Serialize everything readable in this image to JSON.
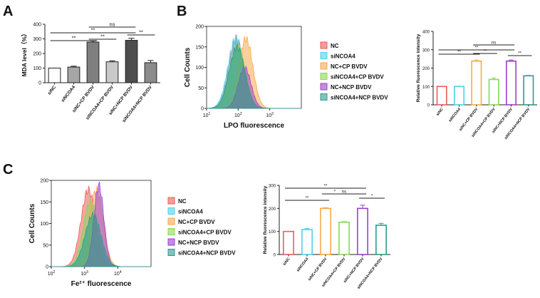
{
  "panel_labels": {
    "a": "A",
    "b": "B",
    "c": "C"
  },
  "chart_data": [
    {
      "id": "A",
      "type": "bar",
      "ylabel": "MDA level（%）",
      "ylim": [
        0,
        400
      ],
      "yticks": [
        0,
        100,
        200,
        300,
        400
      ],
      "categories": [
        "siNC",
        "siNCOA4",
        "siNC+CP BVDV",
        "siNCOA4+CP BVDV",
        "siNC+NCP BVDV",
        "siNCOA4+NCP BVDV"
      ],
      "values": [
        100,
        107,
        278,
        143,
        290,
        137
      ],
      "errors": [
        0,
        6,
        8,
        7,
        14,
        15
      ],
      "fills": [
        "#ffffff",
        "#a6a6a6",
        "#7f7f7f",
        "#c9c9c9",
        "#4d4d4d",
        "#8c8c8c"
      ],
      "significance": [
        {
          "from": 0,
          "to": 2,
          "label": "**"
        },
        {
          "from": 2,
          "to": 3,
          "label": "**"
        },
        {
          "from": 0,
          "to": 4,
          "label": "**"
        },
        {
          "from": 2,
          "to": 4,
          "label": "ns"
        },
        {
          "from": 4,
          "to": 5,
          "label": "**"
        }
      ]
    },
    {
      "id": "B-hist",
      "type": "area",
      "xlabel": "LPO fluorescence",
      "ylabel": "Cell Counts",
      "ylim": [
        0,
        200
      ],
      "yticks": [
        0,
        50,
        100,
        150,
        200
      ],
      "xscale": "log",
      "xlim": [
        10,
        10000
      ],
      "xtick_labels": [
        "10^1",
        "10^2",
        "10^3"
      ],
      "series": [
        {
          "name": "NC",
          "color": "#f05a5a",
          "peak": 88,
          "width": 0.24,
          "height": 168
        },
        {
          "name": "siNCOA4",
          "color": "#4fd0e8",
          "peak": 85,
          "width": 0.25,
          "height": 172
        },
        {
          "name": "NC+CP BVDV",
          "color": "#f7a94b",
          "peak": 175,
          "width": 0.22,
          "height": 170
        },
        {
          "name": "siNCOA4+CP BVDV",
          "color": "#8ed659",
          "peak": 95,
          "width": 0.24,
          "height": 150
        },
        {
          "name": "NC+NCP BVDV",
          "color": "#9b3fd1",
          "peak": 160,
          "width": 0.2,
          "height": 100
        },
        {
          "name": "siNCOA4+NCP BVDV",
          "color": "#2a9d8f",
          "peak": 92,
          "width": 0.25,
          "height": 150
        }
      ]
    },
    {
      "id": "B-bar",
      "type": "bar",
      "ylabel": "Relative fluorescence intensity",
      "ylim": [
        0,
        400
      ],
      "yticks": [
        0,
        100,
        200,
        300,
        400
      ],
      "categories": [
        "siNC",
        "siNCOA4",
        "siNC+CP BVDV",
        "siNCOA4+CP BVDV",
        "siNC+NCP BVDV",
        "siNCOA4+NCP BVDV"
      ],
      "values": [
        100,
        100,
        238,
        138,
        238,
        158
      ],
      "errors": [
        0,
        0,
        6,
        8,
        6,
        2
      ],
      "colors": [
        "#f05a5a",
        "#4fd0e8",
        "#f7a94b",
        "#8ed659",
        "#9b3fd1",
        "#2a9d8f"
      ],
      "significance": [
        {
          "from": 0,
          "to": 2,
          "label": "**"
        },
        {
          "from": 2,
          "to": 3,
          "label": "**"
        },
        {
          "from": 0,
          "to": 4,
          "label": "**"
        },
        {
          "from": 2,
          "to": 4,
          "label": "ns"
        },
        {
          "from": 4,
          "to": 5,
          "label": "**"
        }
      ]
    },
    {
      "id": "C-hist",
      "type": "area",
      "xlabel": "Fe²⁺ fluorescence",
      "ylabel": "Cell Counts",
      "ylim": [
        0,
        200
      ],
      "yticks": [
        0,
        50,
        100,
        150,
        200
      ],
      "xscale": "log",
      "xlim": [
        100,
        100000
      ],
      "xtick_labels": [
        "10^2",
        "10^3",
        "10^4"
      ],
      "series": [
        {
          "name": "NC",
          "color": "#f05a5a",
          "peak": 1300,
          "width": 0.22,
          "height": 178
        },
        {
          "name": "siNCOA4",
          "color": "#4fd0e8",
          "peak": 1700,
          "width": 0.24,
          "height": 110
        },
        {
          "name": "NC+CP BVDV",
          "color": "#f7a94b",
          "peak": 2300,
          "width": 0.2,
          "height": 178
        },
        {
          "name": "siNCOA4+CP BVDV",
          "color": "#8ed659",
          "peak": 1500,
          "width": 0.22,
          "height": 150
        },
        {
          "name": "NC+NCP BVDV",
          "color": "#9b3fd1",
          "peak": 2700,
          "width": 0.15,
          "height": 188
        },
        {
          "name": "siNCOA4+NCP BVDV",
          "color": "#2a9d8f",
          "peak": 1800,
          "width": 0.24,
          "height": 120
        }
      ]
    },
    {
      "id": "C-bar",
      "type": "bar",
      "ylabel": "Relative fluorescence intensity",
      "ylim": [
        0,
        300
      ],
      "yticks": [
        0,
        100,
        200,
        300
      ],
      "categories": [
        "siNC",
        "siNCOA4",
        "siNC+CP BVDV",
        "siNCOA4+CP BVDV",
        "siNC+NCP BVDV",
        "siNCOA4+NCP BVDV"
      ],
      "values": [
        100,
        108,
        200,
        140,
        200,
        127
      ],
      "errors": [
        0,
        5,
        3,
        3,
        14,
        8
      ],
      "colors": [
        "#f05a5a",
        "#4fd0e8",
        "#f7a94b",
        "#8ed659",
        "#9b3fd1",
        "#2a9d8f"
      ],
      "significance": [
        {
          "from": 0,
          "to": 2,
          "label": "**"
        },
        {
          "from": 2,
          "to": 3,
          "label": "*"
        },
        {
          "from": 0,
          "to": 4,
          "label": "**"
        },
        {
          "from": 2,
          "to": 4,
          "label": "ns"
        },
        {
          "from": 4,
          "to": 5,
          "label": "*"
        }
      ]
    }
  ]
}
